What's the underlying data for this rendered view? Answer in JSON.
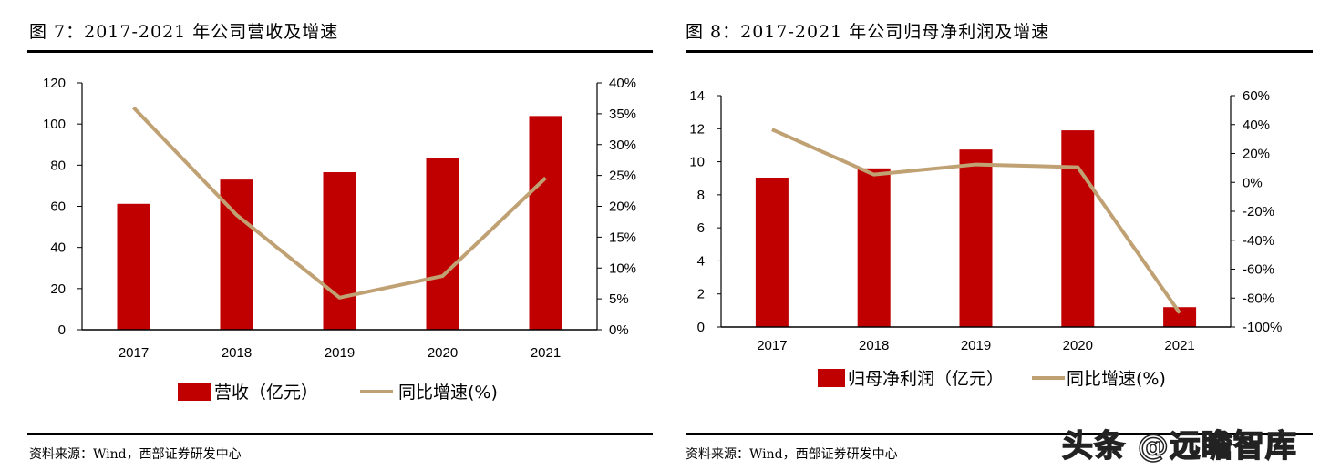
{
  "chart_data": [
    {
      "type": "bar+line",
      "title": "图 7：2017-2021 年公司营收及增速",
      "categories": [
        "2017",
        "2018",
        "2019",
        "2020",
        "2021"
      ],
      "series": [
        {
          "name": "营收（亿元）",
          "type": "bar",
          "axis": "left",
          "values": [
            61.2,
            73.0,
            76.6,
            83.3,
            103.9
          ]
        },
        {
          "name": "同比增速(%)",
          "type": "line",
          "axis": "right",
          "values": [
            36.0,
            18.6,
            5.2,
            8.7,
            24.6
          ]
        }
      ],
      "y_left": {
        "ylim": [
          0,
          120
        ],
        "ticks": [
          "0",
          "20",
          "40",
          "60",
          "80",
          "100",
          "120"
        ]
      },
      "y_right": {
        "ylim": [
          0,
          40
        ],
        "ticks": [
          "0%",
          "5%",
          "10%",
          "15%",
          "20%",
          "25%",
          "30%",
          "35%",
          "40%"
        ]
      },
      "grid": false,
      "legend": "bottom",
      "source": "资料来源：Wind，西部证券研发中心"
    },
    {
      "type": "bar+line",
      "title": "图 8：2017-2021 年公司归母净利润及增速",
      "categories": [
        "2017",
        "2018",
        "2019",
        "2020",
        "2021"
      ],
      "series": [
        {
          "name": "归母净利润（亿元）",
          "type": "bar",
          "axis": "left",
          "values": [
            9.04,
            9.6,
            10.74,
            11.9,
            1.2
          ]
        },
        {
          "name": "同比增速(%)",
          "type": "line",
          "axis": "right",
          "values": [
            36.6,
            5.4,
            12.4,
            10.5,
            -90.3
          ]
        }
      ],
      "y_left": {
        "ylim": [
          0,
          14
        ],
        "ticks": [
          "0",
          "2",
          "4",
          "6",
          "8",
          "10",
          "12",
          "14"
        ]
      },
      "y_right": {
        "ylim": [
          -100,
          60
        ],
        "ticks": [
          "-100%",
          "-80%",
          "-60%",
          "-40%",
          "-20%",
          "0%",
          "20%",
          "40%",
          "60%"
        ]
      },
      "grid": false,
      "legend": "bottom",
      "source": "资料来源：Wind，西部证券研发中心"
    }
  ],
  "colors": {
    "bar": "#C00000",
    "line": "#BFA173"
  },
  "watermark": "头条 @远瞻智库"
}
